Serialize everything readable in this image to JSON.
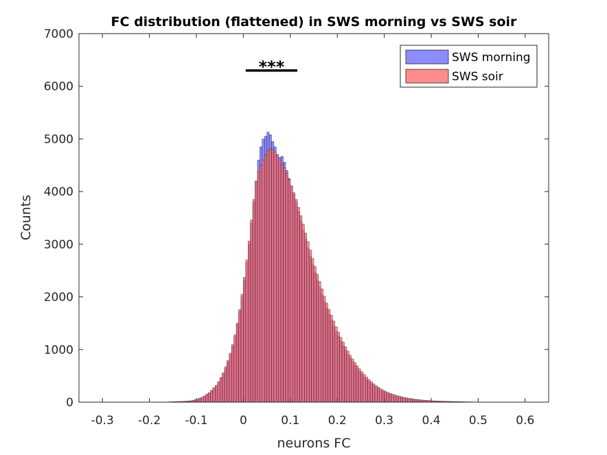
{
  "chart_data": {
    "type": "histogram",
    "title": "FC distribution (flattened) in SWS morning vs SWS soir",
    "xlabel": "neurons FC",
    "ylabel": "Counts",
    "xlim": [
      -0.35,
      0.65
    ],
    "ylim": [
      0,
      7000
    ],
    "xticks": [
      -0.3,
      -0.2,
      -0.1,
      0,
      0.1,
      0.2,
      0.3,
      0.4,
      0.5,
      0.6
    ],
    "xtick_labels": [
      "-0.3",
      "-0.2",
      "-0.1",
      "0",
      "0.1",
      "0.2",
      "0.3",
      "0.4",
      "0.5",
      "0.6"
    ],
    "yticks": [
      0,
      1000,
      2000,
      3000,
      4000,
      5000,
      6000,
      7000
    ],
    "ytick_labels": [
      "0",
      "1000",
      "2000",
      "3000",
      "4000",
      "5000",
      "6000",
      "7000"
    ],
    "grid": false,
    "legend_location": "top-right",
    "bin_width": 0.005,
    "bin_start": -0.16,
    "series": [
      {
        "name": "SWS morning",
        "color": "#6666ff",
        "opacity": 0.75,
        "values": [
          5,
          6,
          7,
          9,
          10,
          12,
          14,
          16,
          19,
          22,
          30,
          40,
          50,
          70,
          90,
          110,
          140,
          170,
          210,
          260,
          300,
          370,
          450,
          530,
          640,
          760,
          900,
          1060,
          1250,
          1480,
          1720,
          2000,
          2320,
          2650,
          3000,
          3400,
          3800,
          4200,
          4600,
          4850,
          5000,
          5050,
          5130,
          5080,
          4950,
          4850,
          4700,
          4650,
          4670,
          4560,
          4400,
          4250,
          4100,
          3950,
          3800,
          3620,
          3440,
          3270,
          3100,
          2930,
          2770,
          2610,
          2460,
          2320,
          2180,
          2040,
          1910,
          1790,
          1670,
          1560,
          1450,
          1350,
          1250,
          1160,
          1070,
          990,
          910,
          840,
          770,
          700,
          640,
          580,
          530,
          480,
          430,
          390,
          350,
          315,
          285,
          255,
          228,
          205,
          185,
          165,
          148,
          132,
          118,
          106,
          95,
          85,
          76,
          68,
          61,
          55,
          50,
          45,
          41,
          37,
          34,
          31,
          28,
          26,
          24,
          22,
          20,
          18,
          16,
          15,
          13,
          12,
          11,
          10,
          9,
          8,
          7,
          6,
          5,
          5,
          4,
          4,
          3,
          3,
          2
        ]
      },
      {
        "name": "SWS soir",
        "color": "#ff6666",
        "opacity": 0.75,
        "values": [
          5,
          6,
          8,
          9,
          11,
          13,
          15,
          18,
          21,
          25,
          32,
          42,
          55,
          75,
          95,
          118,
          150,
          180,
          225,
          275,
          320,
          390,
          470,
          560,
          670,
          790,
          930,
          1090,
          1280,
          1500,
          1760,
          2050,
          2370,
          2700,
          3060,
          3460,
          3850,
          4200,
          4380,
          4500,
          4600,
          4700,
          4780,
          4820,
          4800,
          4750,
          4700,
          4600,
          4520,
          4450,
          4350,
          4230,
          4110,
          3980,
          3850,
          3700,
          3540,
          3380,
          3210,
          3050,
          2890,
          2730,
          2580,
          2430,
          2290,
          2150,
          2010,
          1880,
          1760,
          1650,
          1540,
          1430,
          1330,
          1230,
          1140,
          1050,
          970,
          890,
          820,
          750,
          690,
          630,
          575,
          525,
          475,
          430,
          390,
          350,
          315,
          285,
          255,
          230,
          207,
          187,
          168,
          152,
          137,
          123,
          111,
          100,
          90,
          81,
          73,
          66,
          59,
          53,
          48,
          43,
          39,
          35,
          32,
          29,
          26,
          24,
          22,
          20,
          18,
          16,
          15,
          13,
          12,
          11,
          10,
          9,
          8,
          7,
          6,
          5,
          5,
          4,
          4,
          3,
          3,
          2
        ]
      }
    ],
    "annotations": [
      {
        "text": "***",
        "x_from": 0.005,
        "x_to": 0.115,
        "y": 6300
      }
    ]
  }
}
